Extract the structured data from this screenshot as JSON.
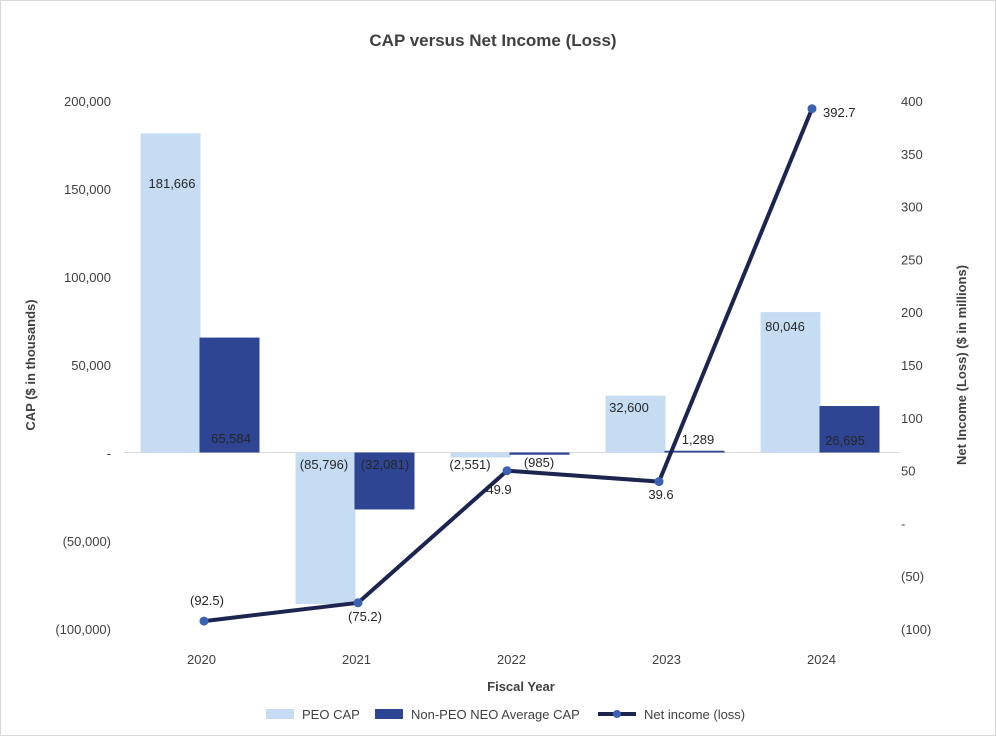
{
  "chart_data": {
    "type": "bar",
    "title": "CAP versus Net Income (Loss)",
    "xlabel": "Fiscal Year",
    "ylabel": "CAP ($ in thousands)",
    "y2label": "Net Income (Loss) ($ in millions)",
    "categories": [
      "2020",
      "2021",
      "2022",
      "2023",
      "2024"
    ],
    "ylim": [
      -100000,
      200000
    ],
    "y_ticks": [
      200000,
      150000,
      100000,
      50000,
      0,
      -50000,
      -100000
    ],
    "y_tick_labels": [
      "200,000",
      "150,000",
      "100,000",
      "50,000",
      "-",
      "(50,000)",
      "(100,000)"
    ],
    "y2lim": [
      -100,
      400
    ],
    "y2_ticks": [
      400,
      350,
      300,
      250,
      200,
      150,
      100,
      50,
      0,
      -50,
      -100
    ],
    "y2_tick_labels": [
      "400",
      "350",
      "300",
      "250",
      "200",
      "150",
      "100",
      "50",
      "-",
      "(50)",
      "(100)"
    ],
    "series": [
      {
        "name": "PEO CAP",
        "type": "bar",
        "axis": "left",
        "color": "#c5dcf3",
        "values": [
          181666,
          -85796,
          -2551,
          32600,
          80046
        ],
        "labels": [
          "181,666",
          "(85,796)",
          "(2,551)",
          "32,600",
          "80,046"
        ]
      },
      {
        "name": "Non-PEO NEO Average CAP",
        "type": "bar",
        "axis": "left",
        "color": "#2e4593",
        "values": [
          65584,
          -32081,
          -985,
          1289,
          26695
        ],
        "labels": [
          "65,584",
          "(32,081)",
          "(985)",
          "1,289",
          "26,695"
        ]
      },
      {
        "name": "Net income (loss)",
        "type": "line",
        "axis": "right",
        "color": "#1b2550",
        "marker_color": "#3b62b3",
        "values": [
          -92.5,
          -75.2,
          49.9,
          39.6,
          392.7
        ],
        "labels": [
          "(92.5)",
          "(75.2)",
          "49.9",
          "39.6",
          "392.7"
        ]
      }
    ]
  }
}
